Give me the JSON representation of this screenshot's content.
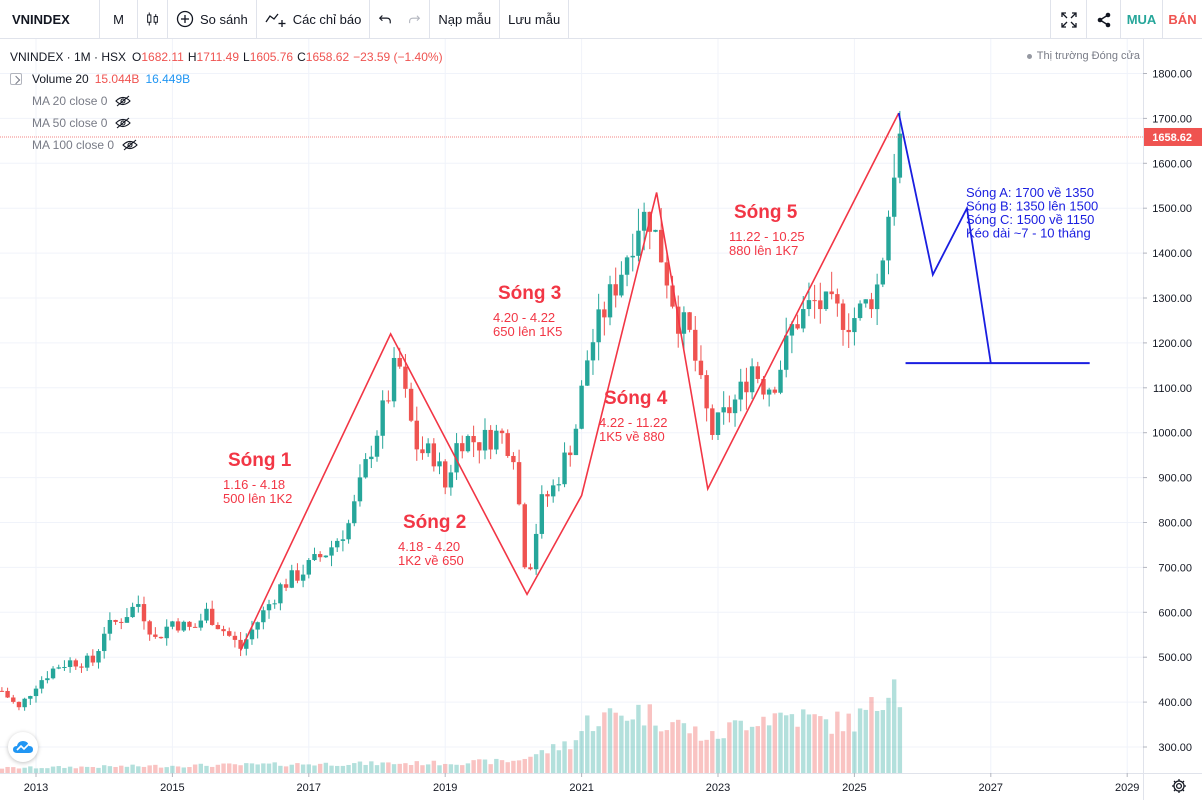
{
  "toolbar": {
    "symbol": "VNINDEX",
    "interval": "M",
    "compare_label": "So sánh",
    "indicators_label": "Các chỉ báo",
    "load_label": "Nạp mẫu",
    "save_label": "Lưu mẫu",
    "buy_label": "MUA",
    "sell_label": "BÁN"
  },
  "legend": {
    "title": "VNINDEX · 1M · HSX",
    "o_key": "O",
    "o_val": "1682.11",
    "h_key": "H",
    "h_val": "1711.49",
    "l_key": "L",
    "l_val": "1605.76",
    "c_key": "C",
    "c_val": "1658.62",
    "change": "−23.59 (−1.40%)",
    "volume_label": "Volume 20",
    "volume_a": "15.044B",
    "volume_b": "16.449B",
    "ma": [
      "MA 20 close 0",
      "MA 50 close 0",
      "MA 100 close 0"
    ]
  },
  "market_status": "Thị trường Đóng cửa",
  "colors": {
    "up": "#26a69a",
    "down": "#ef5350",
    "wave": "#f23645",
    "abc": "#1a1ee0",
    "price_tag": "#ef5350"
  },
  "chart_data": {
    "type": "candlestick",
    "ylim": [
      280,
      1830
    ],
    "y_ticks": [
      300,
      400,
      500,
      600,
      700,
      800,
      900,
      1000,
      1100,
      1200,
      1300,
      1400,
      1500,
      1600,
      1700,
      1800
    ],
    "y_tick_labels": [
      "300.00",
      "400.00",
      "500.00",
      "600.00",
      "700.00",
      "800.00",
      "900.00",
      "1000.00",
      "1100.00",
      "1200.00",
      "1300.00",
      "1400.00",
      "1500.00",
      "1600.00",
      "1700.00",
      "1800.00"
    ],
    "x_ticks": [
      "2013",
      "2015",
      "2017",
      "2019",
      "2021",
      "2023",
      "2025",
      "2027",
      "2029"
    ],
    "x_tick_values": [
      2013.0,
      2015.0,
      2017.0,
      2019.0,
      2021.0,
      2023.0,
      2025.0,
      2027.0,
      2029.0
    ],
    "last_price": 1658.62,
    "last_price_label": "1658.62",
    "anchors": [
      [
        2012.5,
        425
      ],
      [
        2012.75,
        385
      ],
      [
        2013.0,
        440
      ],
      [
        2013.3,
        480
      ],
      [
        2013.5,
        490
      ],
      [
        2013.85,
        490
      ],
      [
        2014.0,
        560
      ],
      [
        2014.2,
        580
      ],
      [
        2014.5,
        620
      ],
      [
        2014.75,
        540
      ],
      [
        2015.0,
        580
      ],
      [
        2015.3,
        560
      ],
      [
        2015.5,
        600
      ],
      [
        2015.75,
        560
      ],
      [
        2016.0,
        520
      ],
      [
        2016.25,
        580
      ],
      [
        2016.6,
        660
      ],
      [
        2016.9,
        690
      ],
      [
        2017.3,
        740
      ],
      [
        2017.6,
        800
      ],
      [
        2017.9,
        960
      ],
      [
        2018.2,
        1100
      ],
      [
        2018.3,
        1170
      ],
      [
        2018.45,
        1050
      ],
      [
        2018.6,
        960
      ],
      [
        2018.85,
        950
      ],
      [
        2019.0,
        880
      ],
      [
        2019.2,
        990
      ],
      [
        2019.5,
        980
      ],
      [
        2019.8,
        1000
      ],
      [
        2020.0,
        960
      ],
      [
        2020.2,
        670
      ],
      [
        2020.4,
        840
      ],
      [
        2020.6,
        880
      ],
      [
        2020.9,
        1000
      ],
      [
        2021.1,
        1180
      ],
      [
        2021.3,
        1260
      ],
      [
        2021.55,
        1350
      ],
      [
        2021.85,
        1480
      ],
      [
        2022.0,
        1480
      ],
      [
        2022.2,
        1380
      ],
      [
        2022.4,
        1260
      ],
      [
        2022.6,
        1210
      ],
      [
        2022.8,
        1060
      ],
      [
        2022.92,
        1000
      ],
      [
        2023.1,
        1040
      ],
      [
        2023.3,
        1080
      ],
      [
        2023.5,
        1150
      ],
      [
        2023.7,
        1100
      ],
      [
        2023.85,
        1120
      ],
      [
        2024.1,
        1240
      ],
      [
        2024.4,
        1290
      ],
      [
        2024.7,
        1270
      ],
      [
        2024.95,
        1250
      ],
      [
        2025.15,
        1280
      ],
      [
        2025.35,
        1330
      ],
      [
        2025.5,
        1490
      ],
      [
        2025.62,
        1640
      ],
      [
        2025.7,
        1658
      ]
    ],
    "volume": {
      "ylim_units": [
        0,
        100
      ],
      "bars_start": 2012.5,
      "bars_end": 2025.7,
      "profile": [
        [
          2012.5,
          5
        ],
        [
          2017.0,
          9
        ],
        [
          2019.0,
          10
        ],
        [
          2020.0,
          12
        ],
        [
          2020.4,
          20
        ],
        [
          2020.9,
          32
        ],
        [
          2021.1,
          52
        ],
        [
          2021.8,
          62
        ],
        [
          2022.3,
          52
        ],
        [
          2022.9,
          34
        ],
        [
          2023.5,
          56
        ],
        [
          2024.1,
          58
        ],
        [
          2024.6,
          50
        ],
        [
          2025.0,
          52
        ],
        [
          2025.4,
          70
        ],
        [
          2025.55,
          115
        ],
        [
          2025.62,
          80
        ]
      ]
    },
    "waves": {
      "points": [
        [
          2016.0,
          515
        ],
        [
          2018.2,
          1220
        ],
        [
          2020.2,
          640
        ],
        [
          2021.0,
          860
        ],
        [
          2022.1,
          1535
        ],
        [
          2022.85,
          875
        ],
        [
          2025.65,
          1712
        ]
      ],
      "labels": [
        {
          "title": "Sóng 1",
          "range": "1.16 - 4.18",
          "desc": "500 lên 1K2"
        },
        {
          "title": "Sóng 2",
          "range": "4.18 - 4.20",
          "desc": "1K2 về 650"
        },
        {
          "title": "Sóng 3",
          "range": "4.20 - 4.22",
          "desc": "650 lên 1K5"
        },
        {
          "title": "Sóng 4",
          "range": "4.22 - 11.22",
          "desc": "1K5 về 880"
        },
        {
          "title": "Sóng 5",
          "range": "11.22 - 10.25",
          "desc": "880 lên 1K7"
        }
      ]
    },
    "projection": {
      "points": [
        [
          2025.65,
          1712
        ],
        [
          2026.15,
          1352
        ],
        [
          2026.65,
          1500
        ],
        [
          2027.0,
          1155
        ]
      ],
      "support_line": {
        "x0": 2025.75,
        "x1": 2028.45,
        "y": 1155
      },
      "notes": [
        "Sóng A: 1700 về 1350",
        "Sóng B: 1350 lên 1500",
        "Sóng C: 1500 về 1150",
        "Kéo dài ~7 - 10 tháng"
      ]
    }
  }
}
